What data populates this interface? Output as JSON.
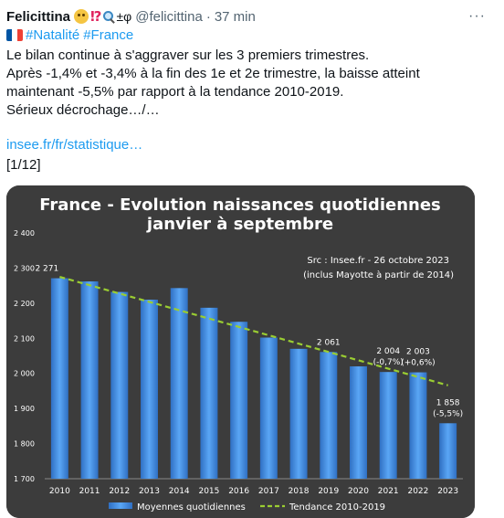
{
  "tweet": {
    "author_name": "Felicittina",
    "name_symbols": "⁉",
    "pm_phi": "±φ",
    "handle": "@felicittina",
    "separator": "·",
    "time": "37 min",
    "more_label": "···",
    "hashtags": [
      "#Natalité",
      "#France"
    ],
    "lines": [
      "Le bilan continue à s'aggraver sur les 3 premiers trimestres.",
      "Après -1,4% et -3,4% à la fin des 1e et 2e trimestre, la baisse atteint",
      "maintenant -5,5% par rapport à la tendance 2010-2019.",
      "Sérieux décrochage…/…"
    ],
    "link_text": "insee.fr/fr/statistique…",
    "thread_counter": "[1/12]"
  },
  "icons": {
    "face": "thinking-face-emoji",
    "question": "exclamation-question-emoji",
    "magnifier": "magnifying-glass-emoji",
    "flag": "france-flag-emoji",
    "more": "more-dots-icon"
  },
  "colors": {
    "link": "#1d9bf0",
    "bar": "#3d8ae6",
    "trend": "#9acd32",
    "chart_bg": "#3c3c3c"
  },
  "chart_data": {
    "type": "bar",
    "title_lines": [
      "France - Evolution naissances quotidiennes",
      "janvier à septembre"
    ],
    "source_lines": [
      "Src : Insee.fr - 26 octobre 2023",
      "(inclus Mayotte à partir de 2014)"
    ],
    "categories": [
      "2010",
      "2011",
      "2012",
      "2013",
      "2014",
      "2015",
      "2016",
      "2017",
      "2018",
      "2019",
      "2020",
      "2021",
      "2022",
      "2023"
    ],
    "ylim": [
      1700,
      2400
    ],
    "yticks": [
      "1 700",
      "1 800",
      "1 900",
      "2 000",
      "2 100",
      "2 200",
      "2 300",
      "2 400"
    ],
    "series": [
      {
        "name": "Moyennes quotidiennes",
        "values": [
          2271,
          2262,
          2232,
          2210,
          2243,
          2187,
          2147,
          2102,
          2070,
          2061,
          2020,
          2004,
          2003,
          1858
        ]
      },
      {
        "name": "Tendance 2010-2019",
        "start": [
          2010,
          2275
        ],
        "end": [
          2023,
          1966
        ]
      }
    ],
    "data_labels": [
      {
        "year": "2010",
        "lines": [
          "2 271"
        ]
      },
      {
        "year": "2019",
        "lines": [
          "2 061"
        ]
      },
      {
        "year": "2021",
        "lines": [
          "2 004",
          "(-0,7%)"
        ]
      },
      {
        "year": "2022",
        "lines": [
          "2 003",
          "(+0,6%)"
        ]
      },
      {
        "year": "2023",
        "lines": [
          "1 858",
          "(-5,5%)"
        ]
      }
    ],
    "grid": false,
    "legend": "bottom"
  }
}
